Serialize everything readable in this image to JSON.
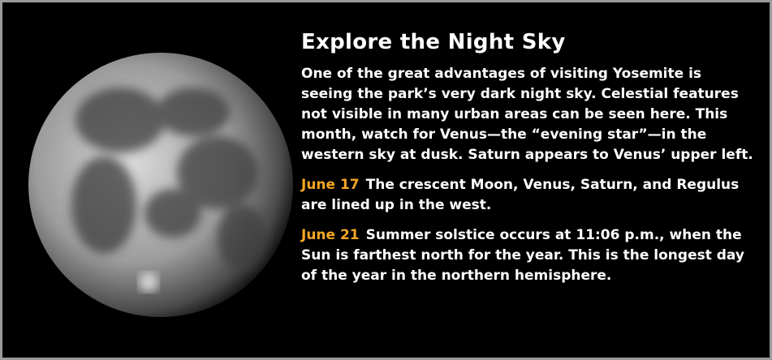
{
  "header": {
    "title": "Explore the Night Sky"
  },
  "intro": "One of the great advantages of visiting Yosemite is seeing the park’s very dark night sky. Celestial features not visible in many urban areas can be seen here. This month, watch for Venus—the “evening star”—in the western sky at dusk. Saturn appears to Venus’ upper left.",
  "events": [
    {
      "date": "June 17",
      "text": "The crescent Moon, Venus, Saturn, and Regulus are lined up in the west."
    },
    {
      "date": "June 21",
      "text": "Summer solstice occurs at 11:06 p.m., when the Sun is farthest north for the year. This is the longest day of the year in the northern hemisphere."
    }
  ]
}
